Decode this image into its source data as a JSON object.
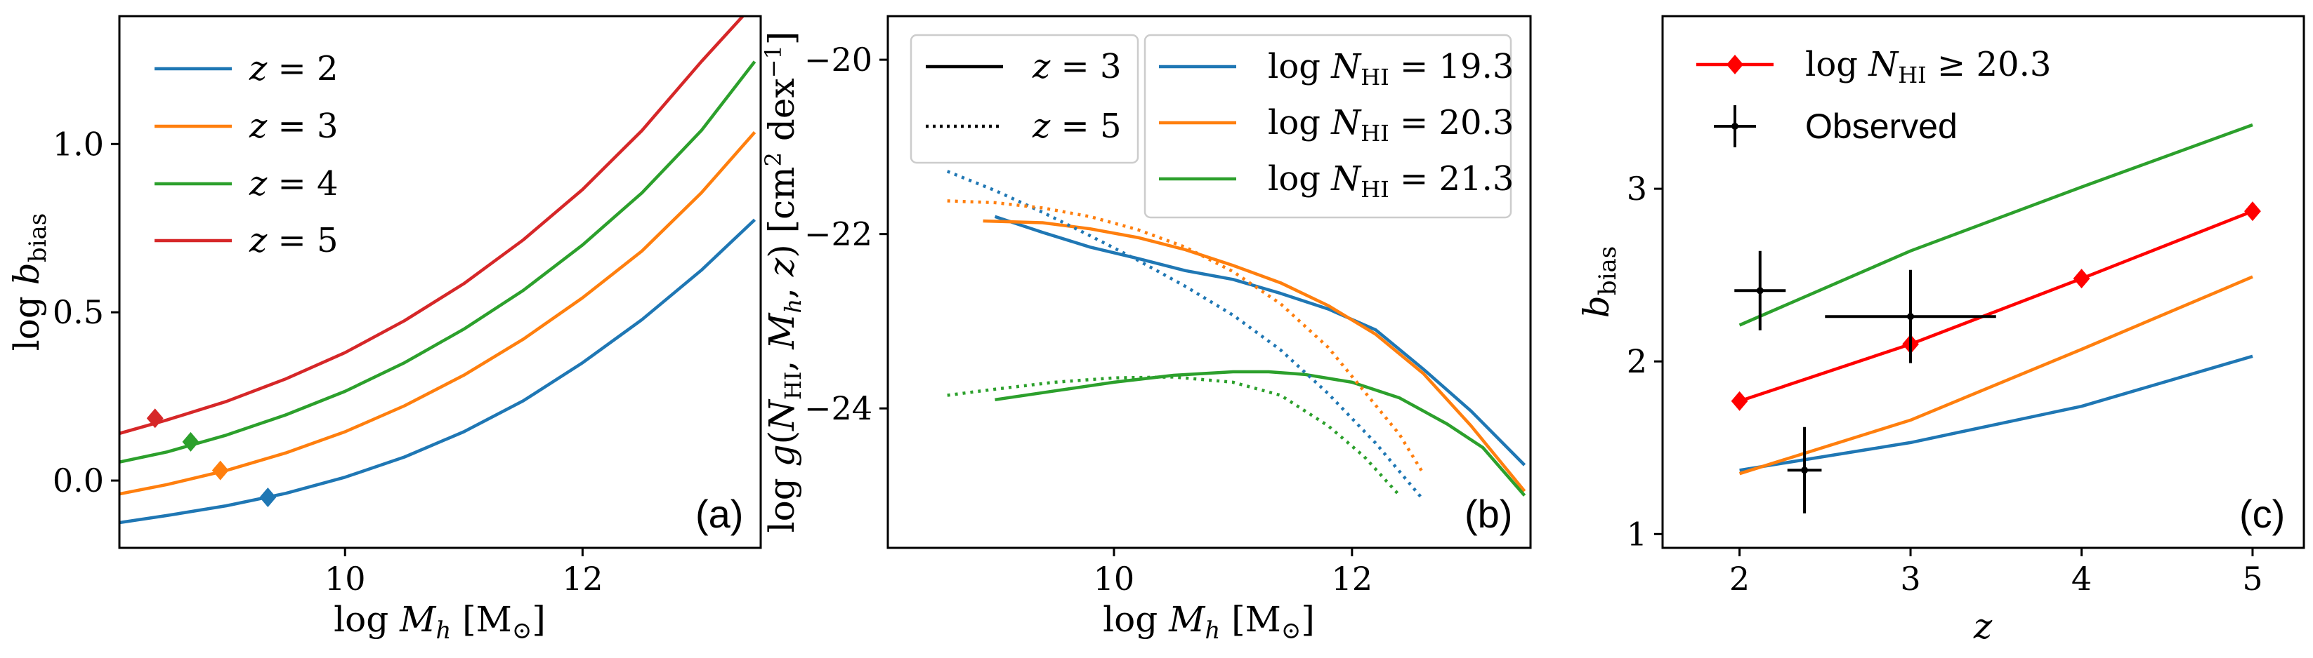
{
  "chart_data": [
    {
      "type": "line",
      "panel_label": "(a)",
      "xlabel": "log M_h [M_⊙]",
      "ylabel": "log b_bias",
      "xlim": [
        8.1,
        13.5
      ],
      "ylim": [
        -0.2,
        1.38
      ],
      "xticks": [
        10,
        12
      ],
      "xtick_labels": [
        "10",
        "12"
      ],
      "yticks": [
        0.0,
        0.5,
        1.0
      ],
      "ytick_labels": [
        "0.0",
        "0.5",
        "1.0"
      ],
      "legend_position": "upper-left",
      "series": [
        {
          "name": "z = 2",
          "color": "#1f77b4",
          "x": [
            8.1,
            8.5,
            9.0,
            9.5,
            10.0,
            10.5,
            11.0,
            11.5,
            12.0,
            12.5,
            13.0,
            13.45
          ],
          "y": [
            -0.125,
            -0.104,
            -0.075,
            -0.038,
            0.01,
            0.07,
            0.145,
            0.237,
            0.35,
            0.478,
            0.625,
            0.775
          ]
        },
        {
          "name": "z = 3",
          "color": "#ff7f0e",
          "x": [
            8.1,
            8.5,
            9.0,
            9.5,
            10.0,
            10.5,
            11.0,
            11.5,
            12.0,
            12.5,
            13.0,
            13.45
          ],
          "y": [
            -0.04,
            -0.012,
            0.03,
            0.082,
            0.145,
            0.222,
            0.313,
            0.42,
            0.543,
            0.682,
            0.855,
            1.035
          ]
        },
        {
          "name": "z = 4",
          "color": "#2ca02c",
          "x": [
            8.1,
            8.5,
            9.0,
            9.5,
            10.0,
            10.5,
            11.0,
            11.5,
            12.0,
            12.5,
            13.0,
            13.45
          ],
          "y": [
            0.055,
            0.085,
            0.135,
            0.195,
            0.265,
            0.35,
            0.45,
            0.565,
            0.7,
            0.855,
            1.04,
            1.245
          ]
        },
        {
          "name": "z = 5",
          "color": "#d62728",
          "x": [
            8.1,
            8.5,
            9.0,
            9.5,
            10.0,
            10.5,
            11.0,
            11.5,
            12.0,
            12.5,
            13.0,
            13.35
          ],
          "y": [
            0.14,
            0.18,
            0.235,
            0.302,
            0.38,
            0.475,
            0.585,
            0.715,
            0.865,
            1.04,
            1.245,
            1.38
          ]
        }
      ],
      "markers": [
        {
          "series": "z = 2",
          "x": 9.35,
          "y": -0.05,
          "shape": "diamond"
        },
        {
          "series": "z = 3",
          "x": 8.95,
          "y": 0.03,
          "shape": "diamond"
        },
        {
          "series": "z = 4",
          "x": 8.7,
          "y": 0.115,
          "shape": "diamond"
        },
        {
          "series": "z = 5",
          "x": 8.4,
          "y": 0.185,
          "shape": "diamond"
        }
      ]
    },
    {
      "type": "line",
      "panel_label": "(b)",
      "xlabel": "log M_h [M_⊙]",
      "ylabel": "log g(N_HI, M_h, z) [cm² dex⁻¹]",
      "xlim": [
        8.1,
        13.5
      ],
      "ylim": [
        -25.6,
        -19.5
      ],
      "xticks": [
        10,
        12
      ],
      "xtick_labels": [
        "10",
        "12"
      ],
      "yticks": [
        -24,
        -22,
        -20
      ],
      "ytick_labels": [
        "−24",
        "−22",
        "−20"
      ],
      "legend_linestyle": [
        {
          "label": "z = 3",
          "style": "solid"
        },
        {
          "label": "z = 5",
          "style": "dotted"
        }
      ],
      "legend_color": [
        {
          "label": "log N_HI = 19.3",
          "color": "#1f77b4"
        },
        {
          "label": "log N_HI = 20.3",
          "color": "#ff7f0e"
        },
        {
          "label": "log N_HI = 21.3",
          "color": "#2ca02c"
        }
      ],
      "series": [
        {
          "name": "log N_HI = 19.3, z = 3",
          "color": "#1f77b4",
          "style": "solid",
          "x": [
            9.0,
            9.4,
            9.8,
            10.2,
            10.6,
            11.0,
            11.4,
            11.8,
            12.2,
            12.6,
            13.0,
            13.45
          ],
          "y": [
            -21.8,
            -21.98,
            -22.15,
            -22.28,
            -22.42,
            -22.52,
            -22.68,
            -22.86,
            -23.1,
            -23.55,
            -24.03,
            -24.65
          ]
        },
        {
          "name": "log N_HI = 20.3, z = 3",
          "color": "#ff7f0e",
          "style": "solid",
          "x": [
            8.9,
            9.4,
            9.8,
            10.2,
            10.6,
            11.0,
            11.4,
            11.8,
            12.2,
            12.6,
            13.0,
            13.45
          ],
          "y": [
            -21.85,
            -21.87,
            -21.94,
            -22.04,
            -22.18,
            -22.36,
            -22.56,
            -22.82,
            -23.15,
            -23.6,
            -24.2,
            -24.95
          ]
        },
        {
          "name": "log N_HI = 21.3, z = 3",
          "color": "#2ca02c",
          "style": "solid",
          "x": [
            9.0,
            9.5,
            10.0,
            10.5,
            11.0,
            11.3,
            11.6,
            12.0,
            12.4,
            12.8,
            13.1,
            13.45
          ],
          "y": [
            -23.9,
            -23.8,
            -23.7,
            -23.62,
            -23.58,
            -23.58,
            -23.61,
            -23.7,
            -23.88,
            -24.18,
            -24.45,
            -25.0
          ]
        },
        {
          "name": "log N_HI = 19.3, z = 5",
          "color": "#1f77b4",
          "style": "dotted",
          "x": [
            8.6,
            9.0,
            9.4,
            9.8,
            10.2,
            10.6,
            11.0,
            11.4,
            11.8,
            12.2,
            12.6
          ],
          "y": [
            -21.28,
            -21.5,
            -21.75,
            -22.02,
            -22.3,
            -22.6,
            -22.93,
            -23.33,
            -23.83,
            -24.4,
            -25.05
          ]
        },
        {
          "name": "log N_HI = 20.3, z = 5",
          "color": "#ff7f0e",
          "style": "dotted",
          "x": [
            8.6,
            9.0,
            9.4,
            9.8,
            10.2,
            10.6,
            11.0,
            11.4,
            11.8,
            12.1,
            12.4,
            12.6
          ],
          "y": [
            -21.62,
            -21.64,
            -21.7,
            -21.8,
            -21.95,
            -22.15,
            -22.43,
            -22.8,
            -23.3,
            -23.8,
            -24.3,
            -24.75
          ]
        },
        {
          "name": "log N_HI = 21.3, z = 5",
          "color": "#2ca02c",
          "style": "dotted",
          "x": [
            8.6,
            9.0,
            9.5,
            10.0,
            10.5,
            11.0,
            11.4,
            11.8,
            12.1,
            12.4
          ],
          "y": [
            -23.85,
            -23.78,
            -23.7,
            -23.65,
            -23.64,
            -23.7,
            -23.85,
            -24.2,
            -24.55,
            -25.0
          ]
        }
      ]
    },
    {
      "type": "line",
      "panel_label": "(c)",
      "xlabel": "z",
      "ylabel": "b_bias",
      "xlim": [
        1.55,
        5.3
      ],
      "ylim": [
        0.92,
        4.0
      ],
      "xticks": [
        2,
        3,
        4,
        5
      ],
      "xtick_labels": [
        "2",
        "3",
        "4",
        "5"
      ],
      "yticks": [
        1,
        2,
        3
      ],
      "ytick_labels": [
        "1",
        "2",
        "3"
      ],
      "legend": [
        {
          "label": "log N_HI ≥ 20.3",
          "color": "#ff0000",
          "marker": "diamond"
        },
        {
          "label": "Observed",
          "color": "#000000",
          "marker": "errorbar"
        }
      ],
      "series": [
        {
          "name": "log N_HI ≥ 20.3",
          "color": "#ff0000",
          "marker": "diamond",
          "x": [
            2,
            3,
            4,
            5
          ],
          "y": [
            1.77,
            2.1,
            2.48,
            2.87
          ]
        },
        {
          "name": "log N_HI = 19.3",
          "color": "#1f77b4",
          "x": [
            2,
            3,
            4,
            5
          ],
          "y": [
            1.37,
            1.53,
            1.74,
            2.03
          ]
        },
        {
          "name": "log N_HI = 20.3",
          "color": "#ff7f0e",
          "x": [
            2,
            3,
            4,
            5
          ],
          "y": [
            1.35,
            1.66,
            2.07,
            2.49
          ]
        },
        {
          "name": "log N_HI = 21.3",
          "color": "#2ca02c",
          "x": [
            2,
            3,
            4,
            5
          ],
          "y": [
            2.21,
            2.64,
            3.01,
            3.37
          ]
        }
      ],
      "observed": [
        {
          "x": 2.12,
          "y": 2.41,
          "xerr": 0.15,
          "yerr": 0.23
        },
        {
          "x": 3.0,
          "y": 2.26,
          "xerr": 0.5,
          "yerr": 0.27
        },
        {
          "x": 2.38,
          "y": 1.37,
          "xerr": 0.1,
          "yerr": 0.25
        }
      ]
    }
  ]
}
